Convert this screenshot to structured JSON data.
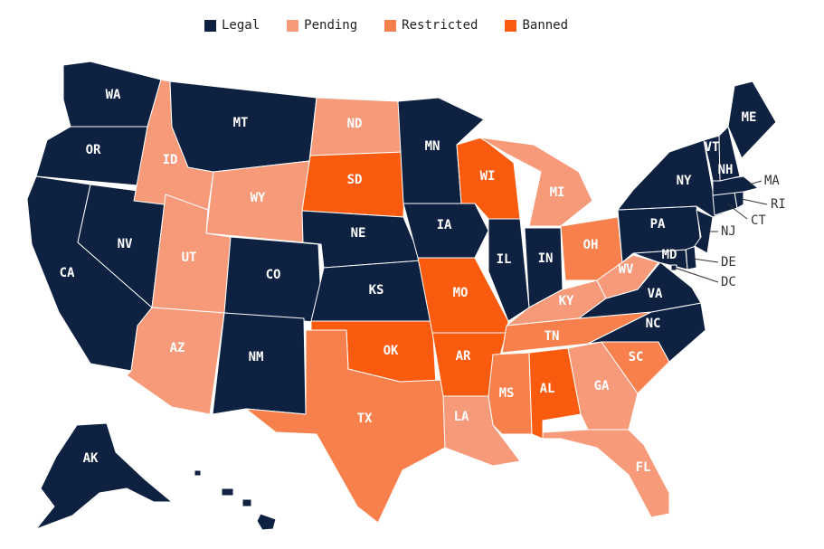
{
  "colors": {
    "Legal": "#0e2141",
    "Pending": "#f69a7a",
    "Restricted": "#f7804c",
    "Banned": "#fa5b0f"
  },
  "legend": [
    {
      "label": "Legal",
      "key": "Legal"
    },
    {
      "label": "Pending",
      "key": "Pending"
    },
    {
      "label": "Restricted",
      "key": "Restricted"
    },
    {
      "label": "Banned",
      "key": "Banned"
    }
  ],
  "states": {
    "WA": "Legal",
    "OR": "Legal",
    "CA": "Legal",
    "NV": "Legal",
    "ID": "Pending",
    "MT": "Legal",
    "WY": "Pending",
    "UT": "Pending",
    "AZ": "Pending",
    "CO": "Legal",
    "NM": "Legal",
    "ND": "Pending",
    "SD": "Banned",
    "NE": "Legal",
    "KS": "Legal",
    "OK": "Banned",
    "TX": "Restricted",
    "MN": "Legal",
    "IA": "Legal",
    "MO": "Banned",
    "AR": "Banned",
    "LA": "Pending",
    "WI": "Banned",
    "IL": "Legal",
    "MI": "Pending",
    "IN": "Legal",
    "OH": "Restricted",
    "KY": "Pending",
    "TN": "Restricted",
    "MS": "Restricted",
    "AL": "Banned",
    "GA": "Pending",
    "FL": "Pending",
    "SC": "Restricted",
    "NC": "Legal",
    "VA": "Legal",
    "WV": "Pending",
    "MD": "Legal",
    "DE": "Legal",
    "DC": "Legal",
    "PA": "Legal",
    "NJ": "Legal",
    "NY": "Legal",
    "CT": "Legal",
    "RI": "Legal",
    "MA": "Legal",
    "VT": "Legal",
    "NH": "Legal",
    "ME": "Legal",
    "AK": "Legal",
    "HI": "Legal"
  }
}
